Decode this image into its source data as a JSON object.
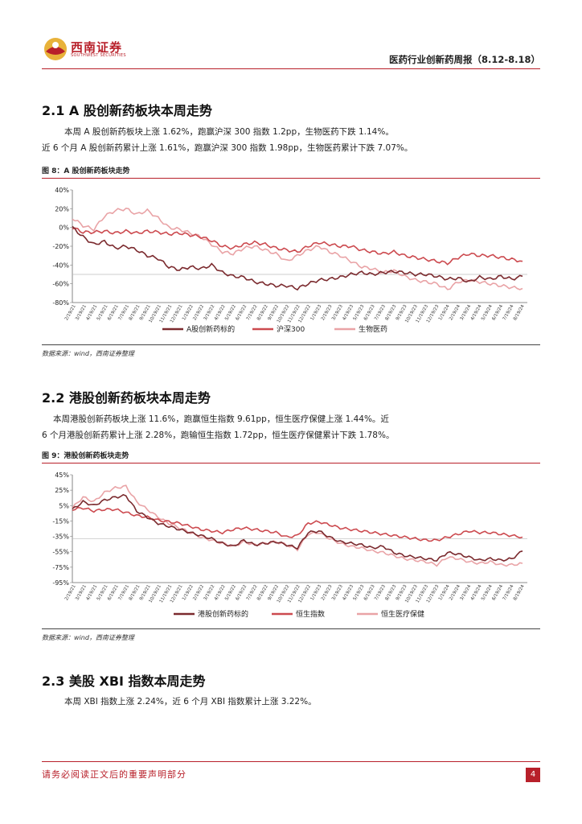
{
  "header": {
    "logo_text": "西南证券",
    "logo_sub": "SOUTHWEST SECURITIES",
    "title": "医药行业创新药周报（8.12-8.18）"
  },
  "sections": [
    {
      "title": "2.1 A 股创新药板块本周走势",
      "lines": [
        "本周 A 股创新药板块上涨 1.62%，跑赢沪深 300 指数 1.2pp，生物医药下跌 1.14%。",
        "近 6 个月 A 股创新药累计上涨 1.61%，跑赢沪深 300 指数 1.98pp，生物医药累计下跌 7.07%。"
      ],
      "figure_title": "图 8：A 股创新药板块走势",
      "source": "数据来源：wind，西南证券整理"
    },
    {
      "title": "2.2 港股创新药板块本周走势",
      "lines": [
        "本周港股创新药板块上涨 11.6%，跑赢恒生指数 9.61pp，恒生医疗保健上涨 1.44%。近",
        "6 个月港股创新药累计上涨 2.28%，跑输恒生指数 1.72pp，恒生医疗保健累计下跌 1.78%。"
      ],
      "figure_title": "图 9：港股创新药板块走势",
      "source": "数据来源：wind，西南证券整理"
    },
    {
      "title": "2.3 美股 XBI 指数本周走势",
      "lines": [
        "本周 XBI 指数上涨 2.24%，近 6 个月 XBI 指数累计上涨 3.22%。"
      ]
    }
  ],
  "footer": {
    "disclaimer": "请务必阅读正文后的重要声明部分",
    "page": "4"
  },
  "chart_data": [
    {
      "type": "line",
      "yticks": [
        "40%",
        "20%",
        "0%",
        "-20%",
        "-40%",
        "-60%",
        "-80%"
      ],
      "ylim": [
        -80,
        40
      ],
      "x_ticks": [
        "2/19/21",
        "4/19/21",
        "6/19/21",
        "8/19/21",
        "10/19/21",
        "12/19/21",
        "2/19/22",
        "4/19/22",
        "6/19/22",
        "8/19/22",
        "10/19/22",
        "12/19/22",
        "2/19/23",
        "4/19/23",
        "6/19/23",
        "8/19/23",
        "10/19/23",
        "12/19/23",
        "2/19/24",
        "4/19/24",
        "6/19/24",
        "8/19/24"
      ],
      "x_tick_dense": [
        "2/19/21",
        "3/19/21",
        "4/19/21",
        "5/19/21",
        "6/19/21",
        "7/19/21",
        "8/19/21",
        "9/19/21",
        "10/19/21",
        "11/19/21",
        "12/19/21",
        "1/19/22",
        "2/19/22",
        "3/19/22",
        "4/19/22",
        "5/19/22",
        "6/19/22",
        "7/19/22",
        "8/19/22",
        "9/19/22",
        "10/19/22",
        "11/19/22",
        "12/19/22",
        "1/19/23",
        "2/19/23",
        "3/19/23",
        "4/19/23",
        "5/19/23",
        "6/19/23",
        "7/19/23",
        "8/19/23",
        "9/19/23",
        "10/19/23",
        "11/19/23",
        "12/19/23",
        "1/19/24",
        "2/19/24",
        "3/19/24",
        "4/19/24",
        "5/19/24",
        "6/19/24",
        "7/19/24",
        "8/19/24"
      ],
      "series": [
        {
          "name": "A股创新药标的",
          "color": "#7b2a2e",
          "values": [
            0,
            -10,
            -18,
            -15,
            -22,
            -20,
            -24,
            -30,
            -33,
            -42,
            -45,
            -42,
            -44,
            -40,
            -48,
            -52,
            -53,
            -58,
            -60,
            -62,
            -62,
            -65,
            -60,
            -56,
            -55,
            -53,
            -50,
            -48,
            -50,
            -48,
            -47,
            -48,
            -50,
            -50,
            -52,
            -55,
            -54,
            -58,
            -53,
            -55,
            -52,
            -55,
            -52
          ]
        },
        {
          "name": "沪深300",
          "color": "#cc4a4f",
          "values": [
            0,
            -5,
            -5,
            -4,
            -6,
            -4,
            -6,
            -4,
            -5,
            -7,
            -6,
            -8,
            -10,
            -14,
            -20,
            -22,
            -18,
            -16,
            -18,
            -22,
            -24,
            -26,
            -20,
            -16,
            -18,
            -20,
            -20,
            -24,
            -26,
            -28,
            -26,
            -30,
            -32,
            -34,
            -36,
            -38,
            -32,
            -28,
            -30,
            -30,
            -32,
            -34,
            -36
          ]
        },
        {
          "name": "生物医药",
          "color": "#e9a3a6",
          "values": [
            10,
            2,
            -2,
            12,
            18,
            20,
            14,
            18,
            10,
            0,
            -2,
            -6,
            -10,
            -18,
            -26,
            -28,
            -22,
            -20,
            -24,
            -28,
            -36,
            -30,
            -24,
            -20,
            -26,
            -30,
            -36,
            -42,
            -44,
            -48,
            -46,
            -52,
            -56,
            -58,
            -60,
            -66,
            -58,
            -56,
            -58,
            -60,
            -62,
            -64,
            -65
          ]
        }
      ]
    },
    {
      "type": "line",
      "yticks": [
        "45%",
        "25%",
        "5%",
        "-15%",
        "-35%",
        "-55%",
        "-75%",
        "-95%"
      ],
      "ylim": [
        -95,
        45
      ],
      "x_ticks": [
        "2/19/21",
        "4/19/21",
        "6/19/21",
        "8/19/21",
        "10/19/21",
        "12/19/21",
        "2/19/22",
        "4/19/22",
        "6/19/22",
        "8/19/22",
        "10/19/22",
        "12/19/22",
        "2/19/23",
        "4/19/23",
        "6/19/23",
        "8/19/23",
        "10/19/23",
        "12/19/23",
        "2/19/24",
        "4/19/24",
        "6/19/24",
        "8/19/24"
      ],
      "x_tick_dense": [
        "2/19/21",
        "3/19/21",
        "4/19/21",
        "5/19/21",
        "6/19/21",
        "7/19/21",
        "8/19/21",
        "9/19/21",
        "10/19/21",
        "11/19/21",
        "12/19/21",
        "1/19/22",
        "2/19/22",
        "3/19/22",
        "4/19/22",
        "5/19/22",
        "6/19/22",
        "7/19/22",
        "8/19/22",
        "9/19/22",
        "10/19/22",
        "11/19/22",
        "12/19/22",
        "1/19/23",
        "2/19/23",
        "3/19/23",
        "4/19/23",
        "5/19/23",
        "6/19/23",
        "7/19/23",
        "8/19/23",
        "9/19/23",
        "10/19/23",
        "11/19/23",
        "12/19/23",
        "1/19/24",
        "2/19/24",
        "3/19/24",
        "4/19/24",
        "5/19/24",
        "6/19/24",
        "7/19/24",
        "8/19/24"
      ],
      "series": [
        {
          "name": "港股创新药标的",
          "color": "#7b2a2e",
          "values": [
            0,
            10,
            5,
            12,
            16,
            18,
            -2,
            -10,
            -18,
            -22,
            -26,
            -30,
            -34,
            -38,
            -44,
            -48,
            -40,
            -46,
            -44,
            -42,
            -46,
            -50,
            -30,
            -28,
            -36,
            -42,
            -44,
            -46,
            -50,
            -48,
            -56,
            -60,
            -62,
            -64,
            -66,
            -56,
            -58,
            -62,
            -66,
            -64,
            -66,
            -64,
            -54
          ]
        },
        {
          "name": "恒生指数",
          "color": "#cc4a4f",
          "values": [
            0,
            2,
            -2,
            0,
            0,
            -4,
            -8,
            -10,
            -14,
            -16,
            -18,
            -22,
            -26,
            -28,
            -30,
            -26,
            -24,
            -26,
            -28,
            -30,
            -36,
            -34,
            -18,
            -16,
            -20,
            -24,
            -26,
            -28,
            -30,
            -32,
            -34,
            -36,
            -38,
            -40,
            -40,
            -36,
            -32,
            -28,
            -30,
            -30,
            -32,
            -34,
            -36
          ]
        },
        {
          "name": "恒生医疗保健",
          "color": "#e9a3a6",
          "values": [
            2,
            16,
            10,
            22,
            28,
            30,
            10,
            0,
            -10,
            -18,
            -24,
            -30,
            -36,
            -40,
            -44,
            -48,
            -42,
            -46,
            -44,
            -42,
            -46,
            -52,
            -32,
            -30,
            -38,
            -44,
            -48,
            -50,
            -54,
            -56,
            -60,
            -64,
            -66,
            -68,
            -72,
            -62,
            -64,
            -68,
            -70,
            -68,
            -72,
            -72,
            -70
          ]
        }
      ]
    }
  ]
}
